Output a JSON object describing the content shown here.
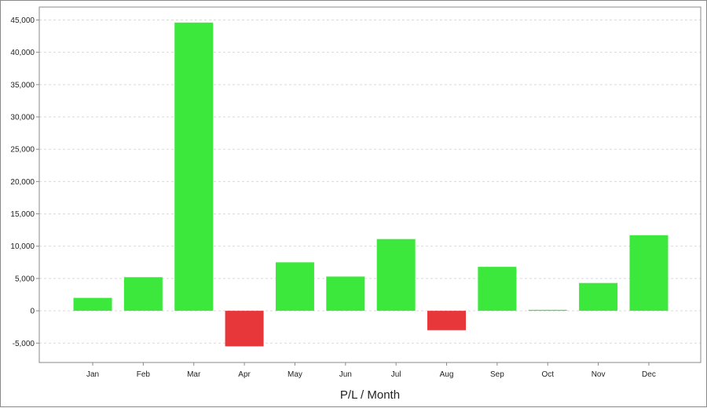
{
  "chart_data": {
    "type": "bar",
    "title": "",
    "xlabel": "P/L / Month",
    "ylabel": "",
    "categories": [
      "Jan",
      "Feb",
      "Mar",
      "Apr",
      "May",
      "Jun",
      "Jul",
      "Aug",
      "Sep",
      "Oct",
      "Nov",
      "Dec"
    ],
    "values": [
      2000,
      5200,
      44600,
      -5500,
      7500,
      5300,
      11100,
      -3000,
      6800,
      150,
      4300,
      11700
    ],
    "ylim": [
      -8000,
      47000
    ],
    "yticks": [
      -5000,
      0,
      5000,
      10000,
      15000,
      20000,
      25000,
      30000,
      35000,
      40000,
      45000
    ],
    "ytick_labels": [
      "-5,000",
      "0",
      "5,000",
      "10,000",
      "15,000",
      "20,000",
      "25,000",
      "30,000",
      "35,000",
      "40,000",
      "45,000"
    ],
    "grid": true,
    "legend": "none",
    "colors": {
      "positive": "#3de83d",
      "negative": "#e8373a",
      "grid": "#d9d9d9",
      "axis": "#8a8a8a"
    }
  }
}
